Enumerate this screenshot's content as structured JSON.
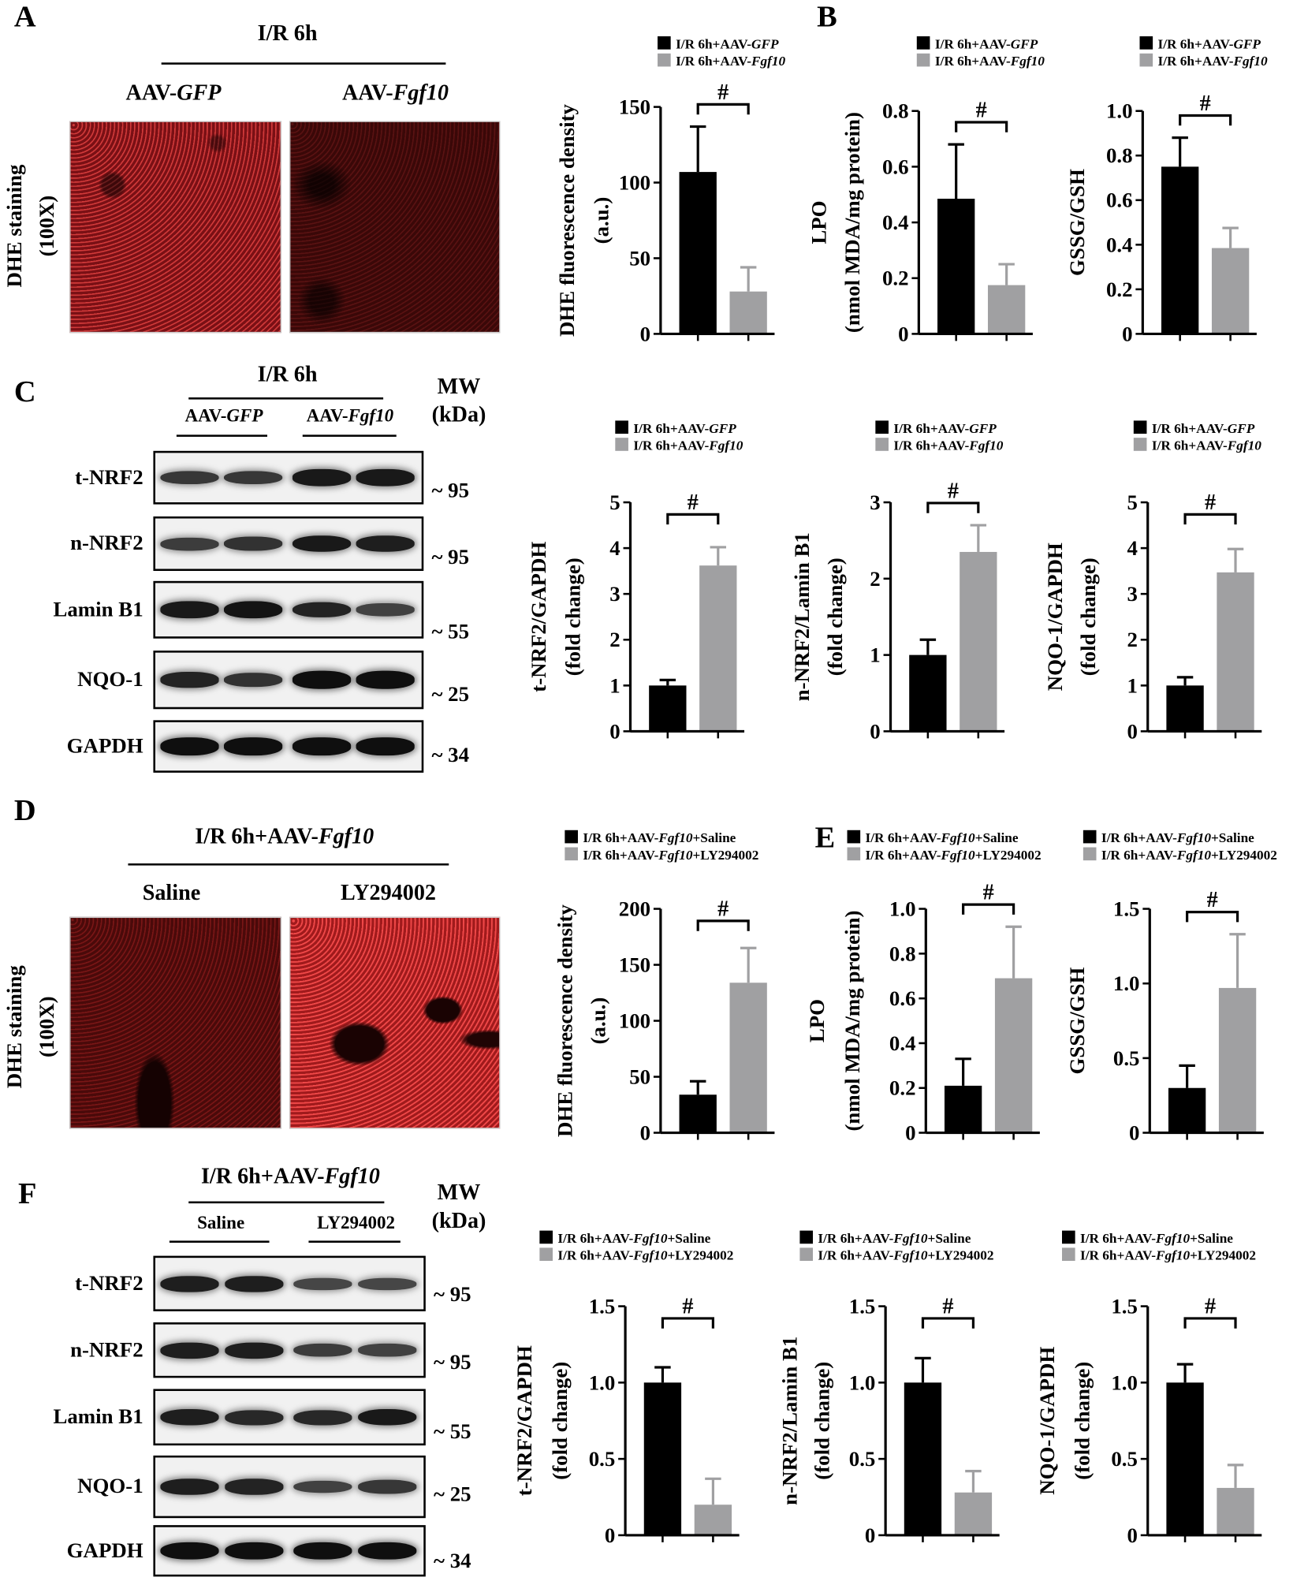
{
  "panels": {
    "A": {
      "letter": "A",
      "title": "I/R 6h",
      "groups": [
        {
          "text": "AAV-",
          "italic": "GFP"
        },
        {
          "text": "AAV-",
          "italic": "Fgf10"
        }
      ],
      "side_label": [
        "DHE staining",
        "(100X)"
      ]
    },
    "B": {
      "letter": "B"
    },
    "C": {
      "letter": "C",
      "title": "I/R 6h",
      "groups": [
        {
          "text": "AAV-",
          "italic": "GFP"
        },
        {
          "text": "AAV-",
          "italic": "Fgf10"
        }
      ],
      "mw_title": [
        "MW",
        "(kDa)"
      ]
    },
    "D": {
      "letter": "D",
      "title": {
        "text": "I/R 6h+AAV-",
        "italic": "Fgf10"
      },
      "groups": [
        {
          "text": "Saline"
        },
        {
          "text": "LY294002"
        }
      ],
      "side_label": [
        "DHE staining",
        "(100X)"
      ]
    },
    "E": {
      "letter": "E"
    },
    "F": {
      "letter": "F",
      "title": {
        "text": "I/R 6h+AAV-",
        "italic": "Fgf10"
      },
      "groups": [
        {
          "text": "Saline"
        },
        {
          "text": "LY294002"
        }
      ],
      "mw_title": [
        "MW",
        "(kDa)"
      ]
    }
  },
  "blots": {
    "C": [
      {
        "label": "t-NRF2",
        "mw": "~ 95",
        "bands": [
          0.55,
          0.55,
          0.85,
          0.85
        ]
      },
      {
        "label": "n-NRF2",
        "mw": "~ 95",
        "bands": [
          0.5,
          0.6,
          0.85,
          0.8
        ]
      },
      {
        "label": "Lamin B1",
        "mw": "~ 55",
        "bands": [
          0.85,
          0.9,
          0.75,
          0.45
        ]
      },
      {
        "label": "NQO-1",
        "mw": "~ 25",
        "bands": [
          0.75,
          0.6,
          0.95,
          0.95
        ]
      },
      {
        "label": "GAPDH",
        "mw": "~ 34",
        "bands": [
          0.95,
          0.95,
          0.95,
          0.95
        ]
      }
    ],
    "F": [
      {
        "label": "t-NRF2",
        "mw": "~ 95",
        "bands": [
          0.8,
          0.8,
          0.4,
          0.4
        ]
      },
      {
        "label": "n-NRF2",
        "mw": "~ 95",
        "bands": [
          0.8,
          0.8,
          0.5,
          0.45
        ]
      },
      {
        "label": "Lamin B1",
        "mw": "~ 55",
        "bands": [
          0.8,
          0.7,
          0.7,
          0.85
        ]
      },
      {
        "label": "NQO-1",
        "mw": "~ 25",
        "bands": [
          0.8,
          0.75,
          0.45,
          0.55
        ]
      },
      {
        "label": "GAPDH",
        "mw": "~ 34",
        "bands": [
          0.95,
          0.95,
          0.95,
          0.95
        ]
      }
    ]
  },
  "colors": {
    "group1": "#000000",
    "group2": "#a0a0a2"
  },
  "chart_data": [
    {
      "type": "bar",
      "panel": "A",
      "ylabel": [
        "DHE fluorescence density",
        "(a.u.)"
      ],
      "ylim": [
        0,
        150
      ],
      "ticks": [
        "0",
        "50",
        "100",
        "150"
      ],
      "legend": [
        {
          "text": "I/R 6h+AAV-",
          "italic": "GFP"
        },
        {
          "text": "I/R 6h+AAV-",
          "italic": "Fgf10"
        }
      ],
      "values": [
        107,
        28
      ],
      "errors": [
        30,
        16
      ],
      "significance": "#"
    },
    {
      "type": "bar",
      "panel": "B",
      "ylabel": [
        "LPO",
        "(nmol MDA/mg protein)"
      ],
      "ylim": [
        0,
        0.8
      ],
      "ticks": [
        "0",
        "0.2",
        "0.4",
        "0.6",
        "0.8"
      ],
      "legend": [
        {
          "text": "I/R 6h+AAV-",
          "italic": "GFP"
        },
        {
          "text": "I/R 6h+AAV-",
          "italic": "Fgf10"
        }
      ],
      "values": [
        0.485,
        0.175
      ],
      "errors": [
        0.195,
        0.075
      ],
      "significance": "#"
    },
    {
      "type": "bar",
      "panel": "B",
      "ylabel": [
        "GSSG/GSH"
      ],
      "ylim": [
        0,
        1.0
      ],
      "ticks": [
        "0",
        "0.2",
        "0.4",
        "0.6",
        "0.8",
        "1.0"
      ],
      "legend": [
        {
          "text": "I/R 6h+AAV-",
          "italic": "GFP"
        },
        {
          "text": "I/R 6h+AAV-",
          "italic": "Fgf10"
        }
      ],
      "values": [
        0.75,
        0.385
      ],
      "errors": [
        0.13,
        0.09
      ],
      "significance": "#"
    },
    {
      "type": "bar",
      "panel": "C",
      "ylabel": [
        "t-NRF2/GAPDH",
        "(fold change)"
      ],
      "ylim": [
        0,
        5
      ],
      "ticks": [
        "0",
        "1",
        "2",
        "3",
        "4",
        "5"
      ],
      "legend": [
        {
          "text": "I/R 6h+AAV-",
          "italic": "GFP"
        },
        {
          "text": "I/R 6h+AAV-",
          "italic": "Fgf10"
        }
      ],
      "values": [
        1.0,
        3.62
      ],
      "errors": [
        0.12,
        0.4
      ],
      "significance": "#"
    },
    {
      "type": "bar",
      "panel": "C",
      "ylabel": [
        "n-NRF2/Lamin B1",
        "(fold change)"
      ],
      "ylim": [
        0,
        3
      ],
      "ticks": [
        "0",
        "1",
        "2",
        "3"
      ],
      "legend": [
        {
          "text": "I/R 6h+AAV-",
          "italic": "GFP"
        },
        {
          "text": "I/R 6h+AAV-",
          "italic": "Fgf10"
        }
      ],
      "values": [
        1.0,
        2.35
      ],
      "errors": [
        0.2,
        0.35
      ],
      "significance": "#"
    },
    {
      "type": "bar",
      "panel": "C",
      "ylabel": [
        "NQO-1/GAPDH",
        "(fold change)"
      ],
      "ylim": [
        0,
        5
      ],
      "ticks": [
        "0",
        "1",
        "2",
        "3",
        "4",
        "5"
      ],
      "legend": [
        {
          "text": "I/R 6h+AAV-",
          "italic": "GFP"
        },
        {
          "text": "I/R 6h+AAV-",
          "italic": "Fgf10"
        }
      ],
      "values": [
        1.0,
        3.47
      ],
      "errors": [
        0.18,
        0.51
      ],
      "significance": "#"
    },
    {
      "type": "bar",
      "panel": "D",
      "ylabel": [
        "DHE fluorescence density",
        "(a.u.)"
      ],
      "ylim": [
        0,
        200
      ],
      "ticks": [
        "0",
        "50",
        "100",
        "150",
        "200"
      ],
      "legend": [
        {
          "text": "I/R 6h+AAV-",
          "italic": "Fgf10",
          "suffix": "+Saline"
        },
        {
          "text": "I/R 6h+AAV-",
          "italic": "Fgf10",
          "suffix": "+LY294002"
        }
      ],
      "values": [
        34,
        134
      ],
      "errors": [
        12,
        31
      ],
      "significance": "#"
    },
    {
      "type": "bar",
      "panel": "E",
      "ylabel": [
        "LPO",
        "(nmol MDA/mg protein)"
      ],
      "ylim": [
        0,
        1.0
      ],
      "ticks": [
        "0",
        "0.2",
        "0.4",
        "0.6",
        "0.8",
        "1.0"
      ],
      "legend": [
        {
          "text": "I/R 6h+AAV-",
          "italic": "Fgf10",
          "suffix": "+Saline"
        },
        {
          "text": "I/R 6h+AAV-",
          "italic": "Fgf10",
          "suffix": "+LY294002"
        }
      ],
      "values": [
        0.21,
        0.69
      ],
      "errors": [
        0.12,
        0.23
      ],
      "significance": "#"
    },
    {
      "type": "bar",
      "panel": "E",
      "ylabel": [
        "GSSG/GSH"
      ],
      "ylim": [
        0,
        1.5
      ],
      "ticks": [
        "0",
        "0.5",
        "1.0",
        "1.5"
      ],
      "legend": [
        {
          "text": "I/R 6h+AAV-",
          "italic": "Fgf10",
          "suffix": "+Saline"
        },
        {
          "text": "I/R 6h+AAV-",
          "italic": "Fgf10",
          "suffix": "+LY294002"
        }
      ],
      "values": [
        0.3,
        0.97
      ],
      "errors": [
        0.15,
        0.36
      ],
      "significance": "#"
    },
    {
      "type": "bar",
      "panel": "F",
      "ylabel": [
        "t-NRF2/GAPDH",
        "(fold change)"
      ],
      "ylim": [
        0,
        1.5
      ],
      "ticks": [
        "0",
        "0.5",
        "1.0",
        "1.5"
      ],
      "legend": [
        {
          "text": "I/R 6h+AAV-",
          "italic": "Fgf10",
          "suffix": "+Saline"
        },
        {
          "text": "I/R 6h+AAV-",
          "italic": "Fgf10",
          "suffix": "+LY294002"
        }
      ],
      "values": [
        1.0,
        0.2
      ],
      "errors": [
        0.1,
        0.17
      ],
      "significance": "#"
    },
    {
      "type": "bar",
      "panel": "F",
      "ylabel": [
        "n-NRF2/Lamin B1",
        "(fold change)"
      ],
      "ylim": [
        0,
        1.5
      ],
      "ticks": [
        "0",
        "0.5",
        "1.0",
        "1.5"
      ],
      "legend": [
        {
          "text": "I/R 6h+AAV-",
          "italic": "Fgf10",
          "suffix": "+Saline"
        },
        {
          "text": "I/R 6h+AAV-",
          "italic": "Fgf10",
          "suffix": "+LY294002"
        }
      ],
      "values": [
        1.0,
        0.28
      ],
      "errors": [
        0.16,
        0.14
      ],
      "significance": "#"
    },
    {
      "type": "bar",
      "panel": "F",
      "ylabel": [
        "NQO-1/GAPDH",
        "(fold change)"
      ],
      "ylim": [
        0,
        1.5
      ],
      "ticks": [
        "0",
        "0.5",
        "1.0",
        "1.5"
      ],
      "legend": [
        {
          "text": "I/R 6h+AAV-",
          "italic": "Fgf10",
          "suffix": "+Saline"
        },
        {
          "text": "I/R 6h+AAV-",
          "italic": "Fgf10",
          "suffix": "+LY294002"
        }
      ],
      "values": [
        1.0,
        0.31
      ],
      "errors": [
        0.12,
        0.15
      ],
      "significance": "#"
    }
  ]
}
